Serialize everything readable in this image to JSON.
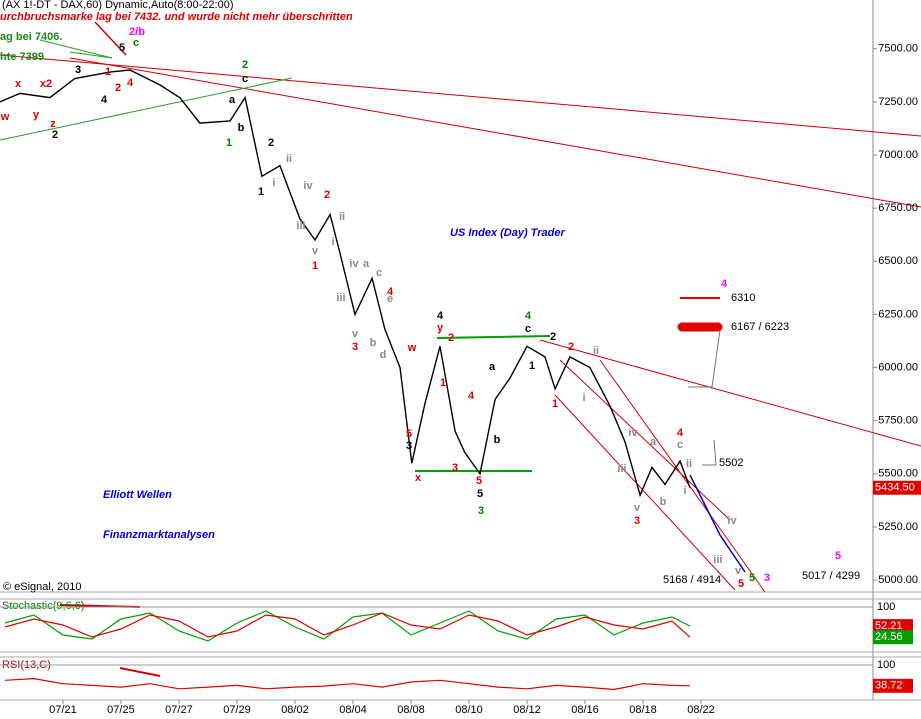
{
  "chart_data": [
    {
      "type": "line",
      "title": "(AX 1!-DT - DAX,60) Dynamic,Auto(8:00-22:00)",
      "annotations": [
        "urchbruchsmarke lag bei 7432. und wurde nicht mehr überschritten",
        "ag bei 7406.",
        "hte 7399.",
        "US Index (Day) Trader",
        "Elliott Wellen",
        "Finanzmarktanalysen",
        "© eSignal, 2010",
        "6310",
        "6167 / 6223",
        "5502",
        "5168 / 4914",
        "5017 / 4299"
      ],
      "wave_labels": [
        {
          "text": "2/b",
          "color": "#ff00ff"
        },
        {
          "text": "c",
          "color": "#008000"
        },
        {
          "text": "5",
          "color": "#000000"
        },
        {
          "text": "3",
          "color": "#000000"
        },
        {
          "text": "x2",
          "color": "#e00000"
        },
        {
          "text": "x",
          "color": "#e00000"
        },
        {
          "text": "4",
          "color": "#000000"
        },
        {
          "text": "4",
          "color": "#e00000"
        },
        {
          "text": "2",
          "color": "#e00000"
        },
        {
          "text": "1",
          "color": "#e00000"
        },
        {
          "text": "w",
          "color": "#e00000"
        },
        {
          "text": "y",
          "color": "#e00000"
        },
        {
          "text": "z",
          "color": "#e00000"
        },
        {
          "text": "2",
          "color": "#000000"
        },
        {
          "text": "2",
          "color": "#008000"
        },
        {
          "text": "c",
          "color": "#000000"
        },
        {
          "text": "a",
          "color": "#000000"
        },
        {
          "text": "b",
          "color": "#000000"
        },
        {
          "text": "1",
          "color": "#008000"
        },
        {
          "text": "2",
          "color": "#000000"
        },
        {
          "text": "ii",
          "color": "#888888"
        },
        {
          "text": "i",
          "color": "#888888"
        },
        {
          "text": "1",
          "color": "#000000"
        },
        {
          "text": "iv",
          "color": "#888888"
        },
        {
          "text": "2",
          "color": "#e00000"
        },
        {
          "text": "iii",
          "color": "#888888"
        },
        {
          "text": "ii",
          "color": "#888888"
        },
        {
          "text": "v",
          "color": "#888888"
        },
        {
          "text": "1",
          "color": "#e00000"
        },
        {
          "text": "i",
          "color": "#888888"
        },
        {
          "text": "iv",
          "color": "#888888"
        },
        {
          "text": "a",
          "color": "#888888"
        },
        {
          "text": "c",
          "color": "#888888"
        },
        {
          "text": "4",
          "color": "#e00000"
        },
        {
          "text": "e",
          "color": "#888888"
        },
        {
          "text": "iii",
          "color": "#888888"
        },
        {
          "text": "v",
          "color": "#888888"
        },
        {
          "text": "3",
          "color": "#e00000"
        },
        {
          "text": "b",
          "color": "#888888"
        },
        {
          "text": "d",
          "color": "#888888"
        },
        {
          "text": "w",
          "color": "#e00000"
        },
        {
          "text": "4",
          "color": "#000000"
        },
        {
          "text": "y",
          "color": "#e00000"
        },
        {
          "text": "2",
          "color": "#e00000"
        },
        {
          "text": "1",
          "color": "#e00000"
        },
        {
          "text": "4",
          "color": "#e00000"
        },
        {
          "text": "5",
          "color": "#e00000"
        },
        {
          "text": "3",
          "color": "#000000"
        },
        {
          "text": "a",
          "color": "#000000"
        },
        {
          "text": "b",
          "color": "#000000"
        },
        {
          "text": "3",
          "color": "#e00000"
        },
        {
          "text": "x",
          "color": "#e00000"
        },
        {
          "text": "5",
          "color": "#e00000"
        },
        {
          "text": "5",
          "color": "#000000"
        },
        {
          "text": "3",
          "color": "#008000"
        },
        {
          "text": "4",
          "color": "#008000"
        },
        {
          "text": "c",
          "color": "#000000"
        },
        {
          "text": "2",
          "color": "#000000"
        },
        {
          "text": "1",
          "color": "#000000"
        },
        {
          "text": "2",
          "color": "#e00000"
        },
        {
          "text": "ii",
          "color": "#888888"
        },
        {
          "text": "i",
          "color": "#888888"
        },
        {
          "text": "1",
          "color": "#e00000"
        },
        {
          "text": "iv",
          "color": "#888888"
        },
        {
          "text": "iii",
          "color": "#888888"
        },
        {
          "text": "v",
          "color": "#888888"
        },
        {
          "text": "3",
          "color": "#e00000"
        },
        {
          "text": "a",
          "color": "#888888"
        },
        {
          "text": "b",
          "color": "#888888"
        },
        {
          "text": "4",
          "color": "#e00000"
        },
        {
          "text": "c",
          "color": "#888888"
        },
        {
          "text": "ii",
          "color": "#888888"
        },
        {
          "text": "i",
          "color": "#888888"
        },
        {
          "text": "iv",
          "color": "#888888"
        },
        {
          "text": "iii",
          "color": "#888888"
        },
        {
          "text": "v",
          "color": "#888888"
        },
        {
          "text": "5",
          "color": "#e00000"
        },
        {
          "text": "5",
          "color": "#008000"
        },
        {
          "text": "3",
          "color": "#ff00ff"
        },
        {
          "text": "4",
          "color": "#ff00ff"
        },
        {
          "text": "5",
          "color": "#ff00ff"
        }
      ],
      "x": [
        -2.17,
        -1.48,
        -0.45,
        0.41,
        1.62,
        2.31,
        3.34,
        4.03,
        4.72,
        5.76,
        6.28,
        6.86,
        7.48,
        8.17,
        8.69,
        9.21,
        9.55,
        10.07,
        10.66,
        11.1,
        11.62,
        12.03,
        12.48,
        13.0,
        13.52,
        13.86,
        14.38,
        14.9,
        15.41,
        16.0,
        16.62,
        16.97,
        17.48,
        18.17,
        18.86,
        19.38,
        19.9,
        20.31,
        20.76,
        21.28,
        21.62
      ],
      "series": [
        {
          "color": "#000000",
          "values": [
            7250,
            7290,
            7270,
            7360,
            7390,
            7400,
            7330,
            7270,
            7150,
            7160,
            7270,
            6900,
            6950,
            6700,
            6600,
            6720,
            6540,
            6250,
            6420,
            6180,
            6000,
            5550,
            5830,
            6100,
            5700,
            5600,
            5500,
            5850,
            5950,
            6100,
            6050,
            5900,
            6050,
            6000,
            5820,
            5650,
            5400,
            5530,
            5450,
            5560,
            5434.5
          ]
        }
      ],
      "last_price": {
        "value": 5434.5,
        "label": "5434.50"
      },
      "xlim": [
        -2.17,
        27.93
      ],
      "xticks": [
        {
          "value": 0,
          "label": "07/21"
        },
        {
          "value": 2,
          "label": "07/25"
        },
        {
          "value": 4,
          "label": "07/27"
        },
        {
          "value": 6,
          "label": "07/29"
        },
        {
          "value": 8,
          "label": "08/02"
        },
        {
          "value": 10,
          "label": "08/04"
        },
        {
          "value": 12,
          "label": "08/08"
        },
        {
          "value": 14,
          "label": "08/10"
        },
        {
          "value": 16,
          "label": "08/12"
        },
        {
          "value": 18,
          "label": "08/16"
        },
        {
          "value": 20,
          "label": "08/18"
        },
        {
          "value": 22,
          "label": "08/22"
        }
      ],
      "ylim": [
        4944,
        7701
      ],
      "yticks": [
        {
          "value": 5000,
          "label": "5000.00"
        },
        {
          "value": 5250,
          "label": "5250.00"
        },
        {
          "value": 5500,
          "label": "5500.00"
        },
        {
          "value": 5750,
          "label": "5750.00"
        },
        {
          "value": 6000,
          "label": "6000.00"
        },
        {
          "value": 6250,
          "label": "6250.00"
        },
        {
          "value": 6500,
          "label": "6500.00"
        },
        {
          "value": 6750,
          "label": "6750.00"
        },
        {
          "value": 7000,
          "label": "7000.00"
        },
        {
          "value": 7250,
          "label": "7250.00"
        },
        {
          "value": 7500,
          "label": "7500.00"
        }
      ]
    },
    {
      "type": "line",
      "title": "Stochastic(9,6,6)",
      "x": [
        -2,
        -1,
        0,
        1,
        2,
        3,
        4,
        5,
        6,
        7,
        8,
        9,
        10,
        11,
        12,
        13,
        14,
        15,
        16,
        17,
        18,
        19,
        20,
        21,
        21.62
      ],
      "series": [
        {
          "color": "#00a000",
          "values": [
            60,
            80,
            30,
            20,
            70,
            85,
            40,
            15,
            60,
            90,
            50,
            20,
            75,
            85,
            30,
            60,
            90,
            40,
            20,
            70,
            80,
            30,
            60,
            75,
            52.21
          ]
        },
        {
          "color": "#e00000",
          "values": [
            50,
            70,
            55,
            25,
            45,
            80,
            65,
            25,
            40,
            80,
            70,
            30,
            55,
            85,
            55,
            45,
            80,
            65,
            30,
            50,
            75,
            55,
            45,
            65,
            24.56
          ]
        }
      ],
      "ylim": [
        0,
        100
      ],
      "yticks": [
        100
      ]
    },
    {
      "type": "line",
      "title": "RSI(13,C)",
      "x": [
        -2,
        -1,
        0,
        1,
        2,
        3,
        4,
        5,
        6,
        7,
        8,
        9,
        10,
        11,
        12,
        13,
        14,
        15,
        16,
        17,
        18,
        19,
        20,
        21,
        21.62
      ],
      "series": [
        {
          "color": "#e00000",
          "values": [
            55,
            60,
            45,
            40,
            35,
            45,
            30,
            35,
            40,
            30,
            35,
            38,
            45,
            35,
            50,
            55,
            45,
            35,
            30,
            40,
            35,
            28,
            45,
            40,
            38.72
          ]
        }
      ],
      "ylim": [
        0,
        100
      ],
      "yticks": [
        100
      ]
    }
  ]
}
